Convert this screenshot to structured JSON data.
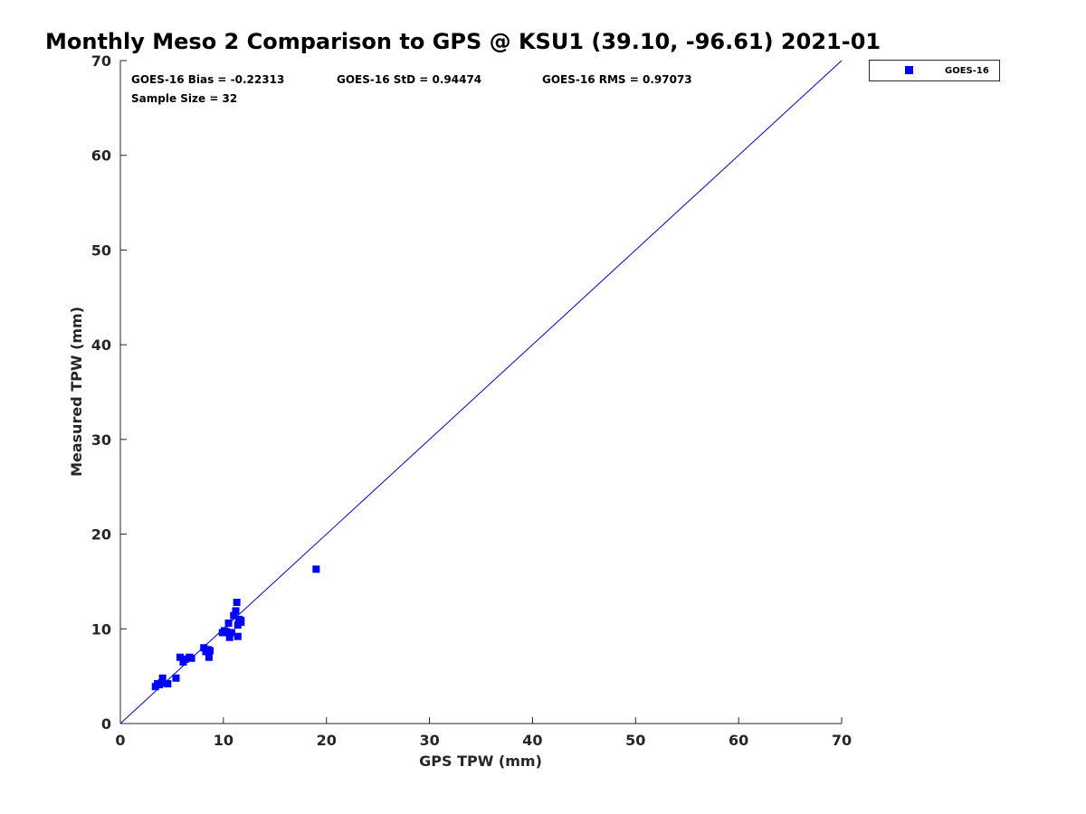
{
  "chart_data": {
    "type": "scatter",
    "title": "Monthly Meso 2 Comparison to GPS @ KSU1 (39.10, -96.61) 2021-01",
    "xlabel": "GPS TPW (mm)",
    "ylabel": "Measured TPW (mm)",
    "xlim": [
      0,
      70
    ],
    "ylim": [
      0,
      70
    ],
    "xticks": [
      "0",
      "10",
      "20",
      "30",
      "40",
      "50",
      "60",
      "70"
    ],
    "yticks": [
      "0",
      "10",
      "20",
      "30",
      "40",
      "50",
      "60",
      "70"
    ],
    "grid": false,
    "legend_position": "outside-top-right",
    "reference_line": {
      "x": [
        0,
        70
      ],
      "y": [
        0,
        70
      ],
      "color": "#0000cc"
    },
    "stats": {
      "bias": "GOES-16 Bias = -0.22313",
      "std": "GOES-16 StD = 0.94474",
      "rms": "GOES-16 RMS = 0.97073",
      "sample_size": "Sample Size = 32"
    },
    "series": [
      {
        "name": "GOES-16",
        "color": "#0000ff",
        "marker": "square",
        "x": [
          3.4,
          3.6,
          3.8,
          4.0,
          4.1,
          4.6,
          5.4,
          5.8,
          6.1,
          6.3,
          6.7,
          6.9,
          8.1,
          8.3,
          8.5,
          8.6,
          8.7,
          9.9,
          10.1,
          10.3,
          10.5,
          10.6,
          10.8,
          11.0,
          11.2,
          11.3,
          11.4,
          11.4,
          11.5,
          11.7,
          11.7,
          19.0
        ],
        "y": [
          3.9,
          4.2,
          4.1,
          4.3,
          4.8,
          4.2,
          4.8,
          7.0,
          6.5,
          6.8,
          7.0,
          6.9,
          8.0,
          7.6,
          7.8,
          7.0,
          7.7,
          9.6,
          9.8,
          9.7,
          10.6,
          9.1,
          9.6,
          11.4,
          11.9,
          12.8,
          10.4,
          9.2,
          11.0,
          10.9,
          10.7,
          16.3
        ]
      }
    ]
  }
}
